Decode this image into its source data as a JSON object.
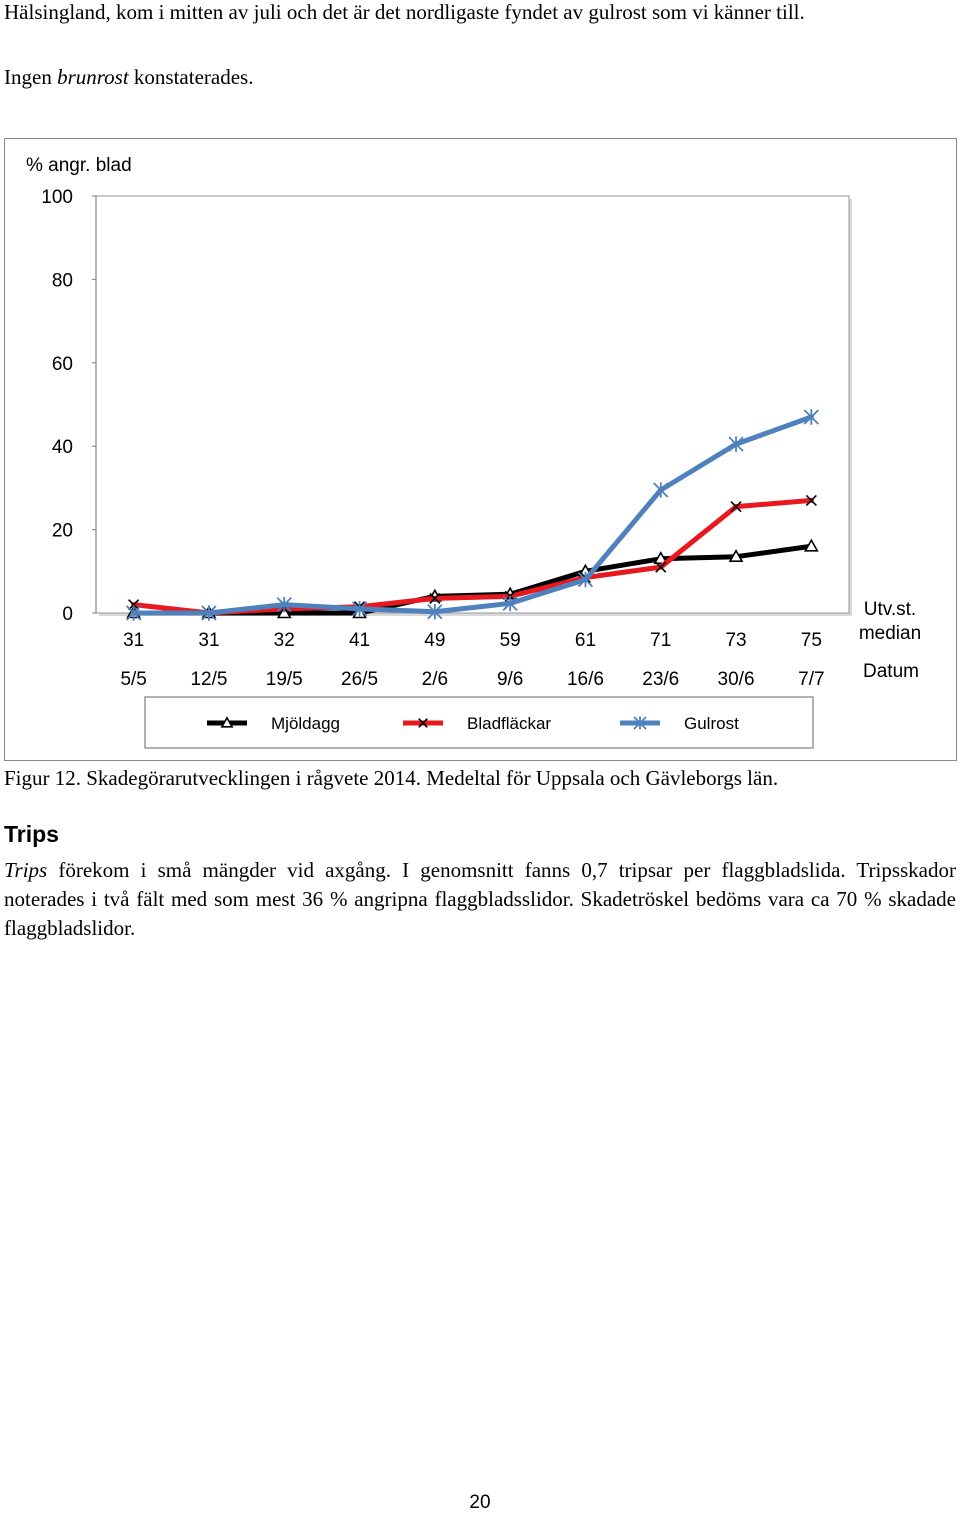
{
  "intro": {
    "line1": "Hälsingland, kom i mitten av juli och det är det nordligaste fyndet av gulrost som vi känner till.",
    "line2_before": "Ingen ",
    "line2_italic": "brunrost",
    "line2_after": " konstaterades."
  },
  "chart_data": {
    "type": "line",
    "ylabel": "% angr. blad",
    "ylim": [
      0,
      100
    ],
    "yticks": [
      0,
      20,
      40,
      60,
      80,
      100
    ],
    "categories": [
      "5/5",
      "12/5",
      "19/5",
      "26/5",
      "2/6",
      "9/6",
      "16/6",
      "23/6",
      "30/6",
      "7/7"
    ],
    "development_stage": [
      "31",
      "31",
      "32",
      "41",
      "49",
      "59",
      "61",
      "71",
      "73",
      "75"
    ],
    "development_stage_label_line1": "Utv.st.",
    "development_stage_label_line2": "median",
    "xlabel": "Datum",
    "legend_position": "bottom",
    "series": [
      {
        "name": "Mjöldagg",
        "marker": "triangle",
        "color": "#000000",
        "values": [
          0,
          0,
          0,
          0,
          4,
          4.5,
          10,
          13,
          13.5,
          16
        ]
      },
      {
        "name": "Bladfläckar",
        "marker": "x",
        "color": "#e8181f",
        "values": [
          2,
          0,
          1,
          1.5,
          3.5,
          4,
          8.5,
          11,
          25.5,
          27
        ]
      },
      {
        "name": "Gulrost",
        "marker": "star",
        "color": "#4f81bd",
        "values": [
          0,
          0,
          2,
          1,
          0.3,
          2.3,
          8,
          29.5,
          40.5,
          47
        ]
      }
    ]
  },
  "caption": "Figur 12. Skadegörarutvecklingen i rågvete 2014. Medeltal för Uppsala och Gävleborgs län.",
  "section": {
    "heading": "Trips",
    "para_italic": "Trips",
    "para_rest": " förekom i små mängder vid axgång. I genomsnitt fanns 0,7 tripsar per flaggbladslida. Tripsskador noterades i två fält med som mest 36 % angripna flaggbladsslidor. Skadetröskel bedöms vara ca 70 % skadade flaggbladslidor."
  },
  "page_number": "20"
}
